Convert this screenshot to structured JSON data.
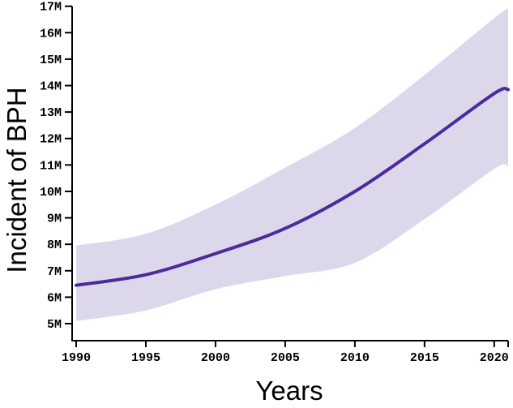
{
  "chart_data": {
    "type": "line",
    "title": "",
    "xlabel": "Years",
    "ylabel": "Incident of BPH",
    "units": "M = millions",
    "x": [
      1990,
      1995,
      2000,
      2005,
      2010,
      2015,
      2020,
      2021
    ],
    "series": [
      {
        "name": "incidence-mean",
        "label": "Incident of BPH",
        "values": [
          6.45,
          6.85,
          7.65,
          8.6,
          10.0,
          11.8,
          13.7,
          13.85
        ]
      },
      {
        "name": "ci-lower",
        "label": "Confidence band lower",
        "values": [
          5.1,
          5.5,
          6.3,
          6.8,
          7.3,
          8.95,
          10.85,
          10.95
        ]
      },
      {
        "name": "ci-upper",
        "label": "Confidence band upper",
        "values": [
          7.95,
          8.4,
          9.5,
          10.9,
          12.4,
          14.4,
          16.55,
          16.9
        ]
      }
    ],
    "xticks": {
      "values": [
        1990,
        1995,
        2000,
        2005,
        2010,
        2015,
        2020
      ],
      "labels": [
        "1990",
        "1995",
        "2000",
        "2005",
        "2010",
        "2015",
        "2020"
      ]
    },
    "yticks": {
      "values": [
        5,
        6,
        7,
        8,
        9,
        10,
        11,
        12,
        13,
        14,
        15,
        16,
        17
      ],
      "labels": [
        "5M",
        "6M",
        "7M",
        "8M",
        "9M",
        "10M",
        "11M",
        "12M",
        "13M",
        "14M",
        "15M",
        "16M",
        "17M"
      ]
    },
    "xlim": [
      1990,
      2021
    ],
    "ylim": [
      5,
      17
    ],
    "grid": false,
    "legend": "none",
    "colors": {
      "line": "#4c2a9c",
      "band": "#ddd7eb",
      "axis": "#000000",
      "text": "#000000",
      "background": "#ffffff"
    }
  }
}
